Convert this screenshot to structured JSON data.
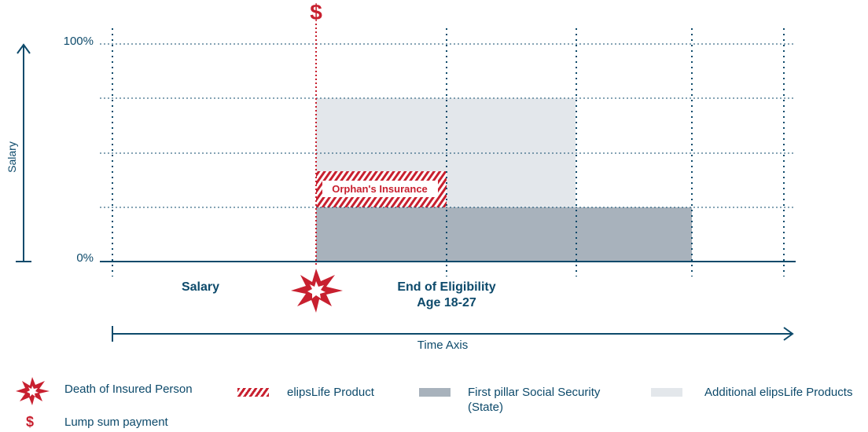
{
  "header": {
    "dollar_symbol": "$"
  },
  "axes": {
    "y_label": "Salary",
    "y_top_tick": "100%",
    "y_bottom_tick": "0%",
    "x_label": "Time Axis"
  },
  "phases": {
    "salary": "Salary",
    "end_line1": "End of Eligibility",
    "end_line2": "Age 18-27"
  },
  "blocks": {
    "orphans_insurance": "Orphan's Insurance"
  },
  "legend": {
    "death": "Death of Insured Person",
    "product": "elipsLife Product",
    "first_pillar_line1": "First pillar Social Security",
    "first_pillar_line2": "(State)",
    "additional": "Additional elipsLife Products",
    "lump_sum": "Lump sum payment",
    "lump_sum_symbol": "$"
  },
  "colors": {
    "navy": "#0d4a6b",
    "red": "#c8202f",
    "grey_block": "#a8b2bc",
    "light_block": "#e3e7eb"
  },
  "icons": {
    "death": "explosion-star-icon",
    "lump_sum": "dollar-icon"
  }
}
